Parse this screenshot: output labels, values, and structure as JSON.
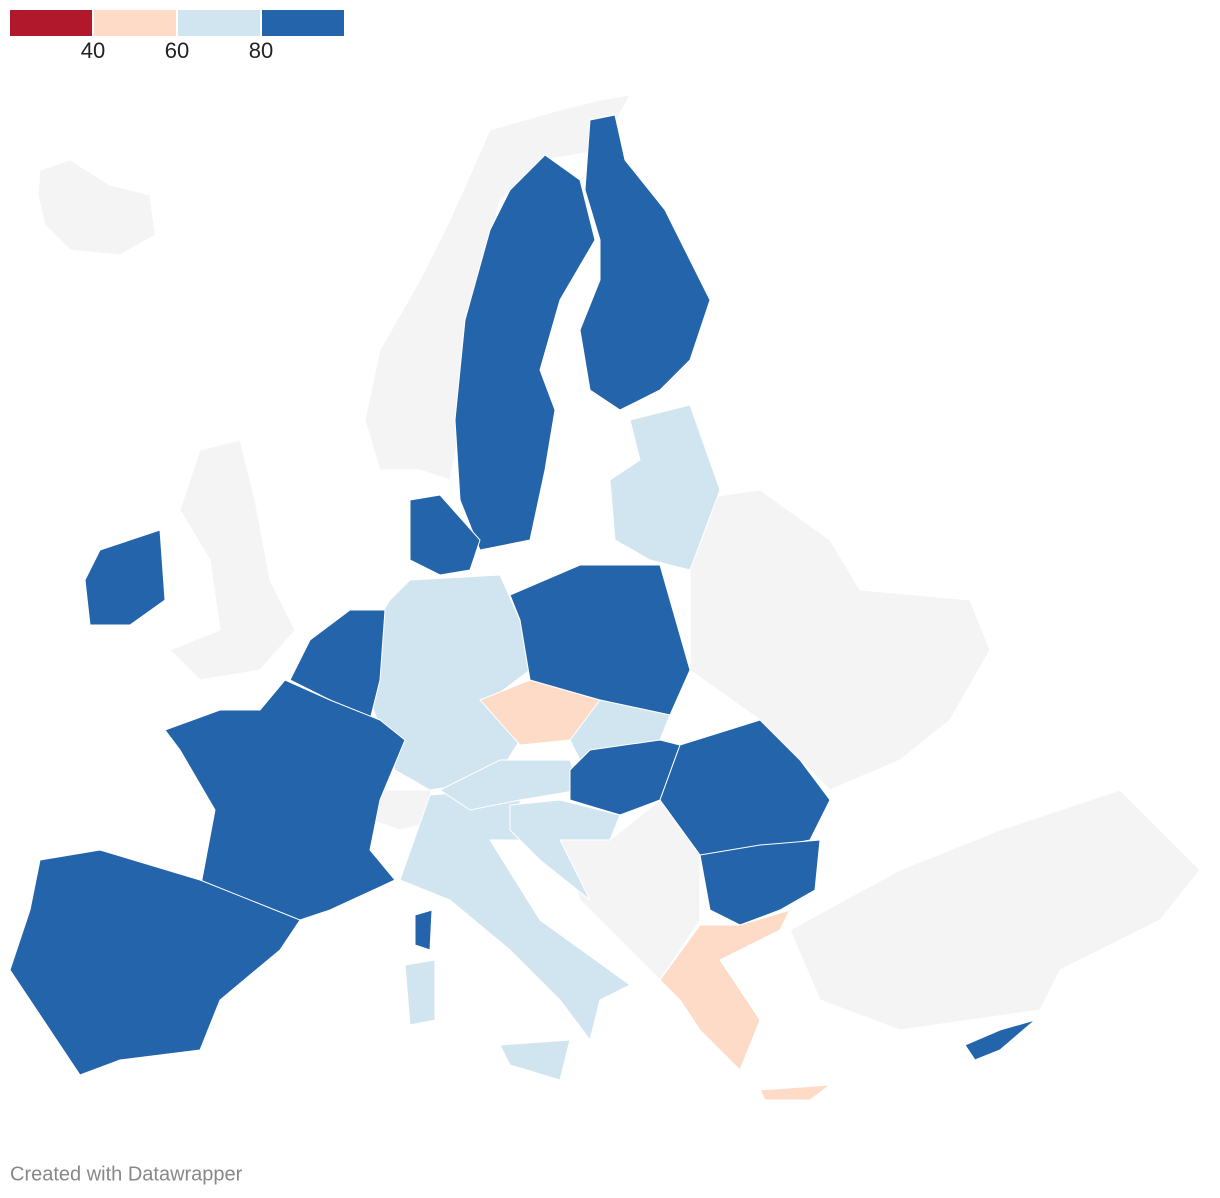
{
  "legend": {
    "colors": [
      "#b2182b",
      "#fddbc7",
      "#d1e5f0",
      "#2364aa"
    ],
    "ticks": [
      40,
      60,
      80
    ]
  },
  "credit": "Created with Datawrapper"
}
